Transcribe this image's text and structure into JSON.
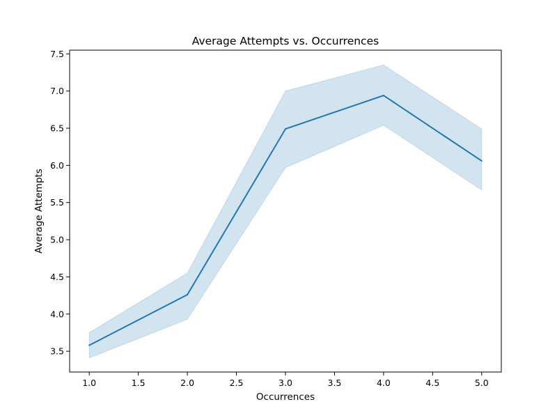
{
  "chart_data": {
    "type": "line",
    "title": "Average Attempts vs. Occurrences",
    "xlabel": "Occurrences",
    "ylabel": "Average Attempts",
    "xlim": [
      0.8,
      5.2
    ],
    "ylim": [
      3.22,
      7.55
    ],
    "x_ticks": [
      1.0,
      1.5,
      2.0,
      2.5,
      3.0,
      3.5,
      4.0,
      4.5,
      5.0
    ],
    "x_tick_labels": [
      "1.0",
      "1.5",
      "2.0",
      "2.5",
      "3.0",
      "3.5",
      "4.0",
      "4.5",
      "5.0"
    ],
    "y_ticks": [
      3.5,
      4.0,
      4.5,
      5.0,
      5.5,
      6.0,
      6.5,
      7.0,
      7.5
    ],
    "y_tick_labels": [
      "3.5",
      "4.0",
      "4.5",
      "5.0",
      "5.5",
      "6.0",
      "6.5",
      "7.0",
      "7.5"
    ],
    "grid": false,
    "series": [
      {
        "x": [
          1,
          2,
          3,
          4,
          5
        ],
        "y": [
          3.58,
          4.26,
          6.49,
          6.94,
          6.06
        ],
        "ci_lower": [
          3.41,
          3.93,
          5.97,
          6.54,
          5.67
        ],
        "ci_upper": [
          3.75,
          4.55,
          7.0,
          7.35,
          6.49
        ],
        "color": "#1f77b4",
        "band_color": "#1f77b4",
        "band_opacity": 0.2
      }
    ]
  }
}
